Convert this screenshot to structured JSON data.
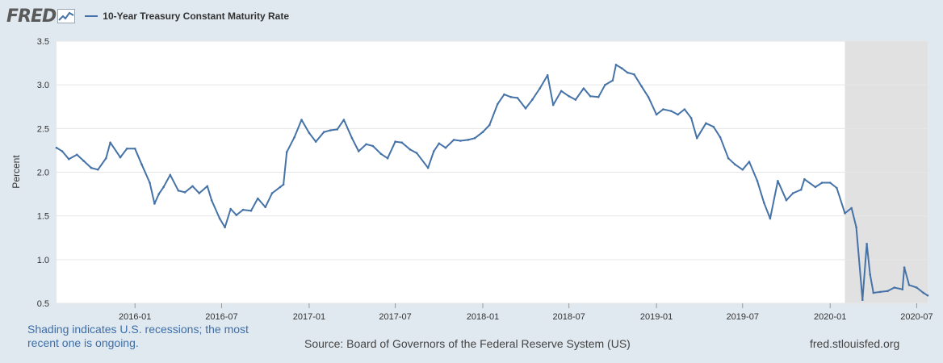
{
  "header": {
    "logo_text": "FRED",
    "legend_label": "10-Year Treasury Constant Maturity Rate"
  },
  "footer": {
    "note": "Shading indicates U.S. recessions; the most recent one is ongoing.",
    "source": "Source: Board of Governors of the Federal Reserve System (US)",
    "site": "fred.stlouisfed.org"
  },
  "colors": {
    "line": "#4572a7",
    "recession": "#e1e1e1",
    "plot_background": "#ffffff",
    "page_background": "#e1e9f0"
  },
  "chart_data": {
    "type": "line",
    "title": "",
    "xlabel": "",
    "ylabel": "Percent",
    "ylim": [
      0.5,
      3.5
    ],
    "xlim": [
      "2015-07-20",
      "2020-07-24"
    ],
    "yticks": [
      "0.5",
      "1.0",
      "1.5",
      "2.0",
      "2.5",
      "3.0",
      "3.5"
    ],
    "xticks": [
      "2016-01",
      "2016-07",
      "2017-01",
      "2017-07",
      "2018-01",
      "2018-07",
      "2019-01",
      "2019-07",
      "2020-01",
      "2020-07"
    ],
    "grid": "horizontal",
    "legend": "top-left",
    "recession_shading": [
      {
        "start": "2020-02-01",
        "end": "2020-07-24"
      }
    ],
    "series": [
      {
        "name": "10-Year Treasury Constant Maturity Rate",
        "x": [
          "2015-07-20",
          "2015-08-01",
          "2015-08-15",
          "2015-09-01",
          "2015-09-15",
          "2015-10-01",
          "2015-10-15",
          "2015-11-01",
          "2015-11-10",
          "2015-12-01",
          "2015-12-15",
          "2016-01-01",
          "2016-01-15",
          "2016-02-01",
          "2016-02-11",
          "2016-02-20",
          "2016-03-01",
          "2016-03-15",
          "2016-04-01",
          "2016-04-15",
          "2016-05-01",
          "2016-05-15",
          "2016-06-01",
          "2016-06-10",
          "2016-06-27",
          "2016-07-08",
          "2016-07-20",
          "2016-08-01",
          "2016-08-15",
          "2016-09-01",
          "2016-09-15",
          "2016-10-01",
          "2016-10-15",
          "2016-11-01",
          "2016-11-08",
          "2016-11-15",
          "2016-12-01",
          "2016-12-16",
          "2017-01-01",
          "2017-01-15",
          "2017-02-01",
          "2017-02-15",
          "2017-03-01",
          "2017-03-15",
          "2017-04-01",
          "2017-04-15",
          "2017-05-01",
          "2017-05-15",
          "2017-06-01",
          "2017-06-15",
          "2017-07-01",
          "2017-07-15",
          "2017-08-01",
          "2017-08-15",
          "2017-09-08",
          "2017-09-20",
          "2017-10-01",
          "2017-10-15",
          "2017-11-01",
          "2017-11-15",
          "2017-12-01",
          "2017-12-15",
          "2018-01-01",
          "2018-01-15",
          "2018-02-01",
          "2018-02-15",
          "2018-03-01",
          "2018-03-15",
          "2018-04-01",
          "2018-04-15",
          "2018-05-01",
          "2018-05-17",
          "2018-05-29",
          "2018-06-15",
          "2018-07-01",
          "2018-07-15",
          "2018-08-01",
          "2018-08-15",
          "2018-09-01",
          "2018-09-15",
          "2018-10-01",
          "2018-10-08",
          "2018-10-20",
          "2018-11-01",
          "2018-11-15",
          "2018-12-01",
          "2018-12-15",
          "2019-01-01",
          "2019-01-15",
          "2019-02-01",
          "2019-02-15",
          "2019-03-01",
          "2019-03-15",
          "2019-03-27",
          "2019-04-15",
          "2019-05-01",
          "2019-05-15",
          "2019-06-01",
          "2019-06-15",
          "2019-07-01",
          "2019-07-15",
          "2019-08-01",
          "2019-08-15",
          "2019-08-28",
          "2019-09-13",
          "2019-10-01",
          "2019-10-15",
          "2019-11-01",
          "2019-11-08",
          "2019-12-01",
          "2019-12-15",
          "2020-01-01",
          "2020-01-15",
          "2020-02-01",
          "2020-02-15",
          "2020-02-25",
          "2020-03-09",
          "2020-03-18",
          "2020-03-25",
          "2020-04-01",
          "2020-04-15",
          "2020-05-01",
          "2020-05-15",
          "2020-06-01",
          "2020-06-05",
          "2020-06-15",
          "2020-07-01",
          "2020-07-15",
          "2020-07-24"
        ],
        "values": [
          2.28,
          2.24,
          2.15,
          2.2,
          2.13,
          2.05,
          2.03,
          2.16,
          2.34,
          2.17,
          2.27,
          2.27,
          2.09,
          1.88,
          1.64,
          1.75,
          1.83,
          1.97,
          1.79,
          1.77,
          1.84,
          1.76,
          1.84,
          1.68,
          1.47,
          1.37,
          1.58,
          1.51,
          1.57,
          1.56,
          1.7,
          1.6,
          1.76,
          1.83,
          1.86,
          2.23,
          2.4,
          2.6,
          2.45,
          2.35,
          2.46,
          2.48,
          2.49,
          2.6,
          2.39,
          2.24,
          2.32,
          2.3,
          2.21,
          2.16,
          2.35,
          2.34,
          2.26,
          2.22,
          2.05,
          2.24,
          2.33,
          2.28,
          2.37,
          2.36,
          2.37,
          2.39,
          2.46,
          2.54,
          2.78,
          2.89,
          2.86,
          2.85,
          2.73,
          2.83,
          2.96,
          3.11,
          2.77,
          2.93,
          2.87,
          2.83,
          2.96,
          2.87,
          2.86,
          3.0,
          3.05,
          3.23,
          3.19,
          3.14,
          3.12,
          2.98,
          2.86,
          2.66,
          2.72,
          2.7,
          2.66,
          2.72,
          2.62,
          2.39,
          2.56,
          2.52,
          2.4,
          2.16,
          2.09,
          2.03,
          2.12,
          1.9,
          1.65,
          1.47,
          1.9,
          1.68,
          1.76,
          1.8,
          1.92,
          1.83,
          1.88,
          1.88,
          1.82,
          1.53,
          1.59,
          1.37,
          0.54,
          1.18,
          0.83,
          0.62,
          0.63,
          0.64,
          0.68,
          0.66,
          0.91,
          0.71,
          0.68,
          0.62,
          0.59
        ]
      }
    ]
  }
}
